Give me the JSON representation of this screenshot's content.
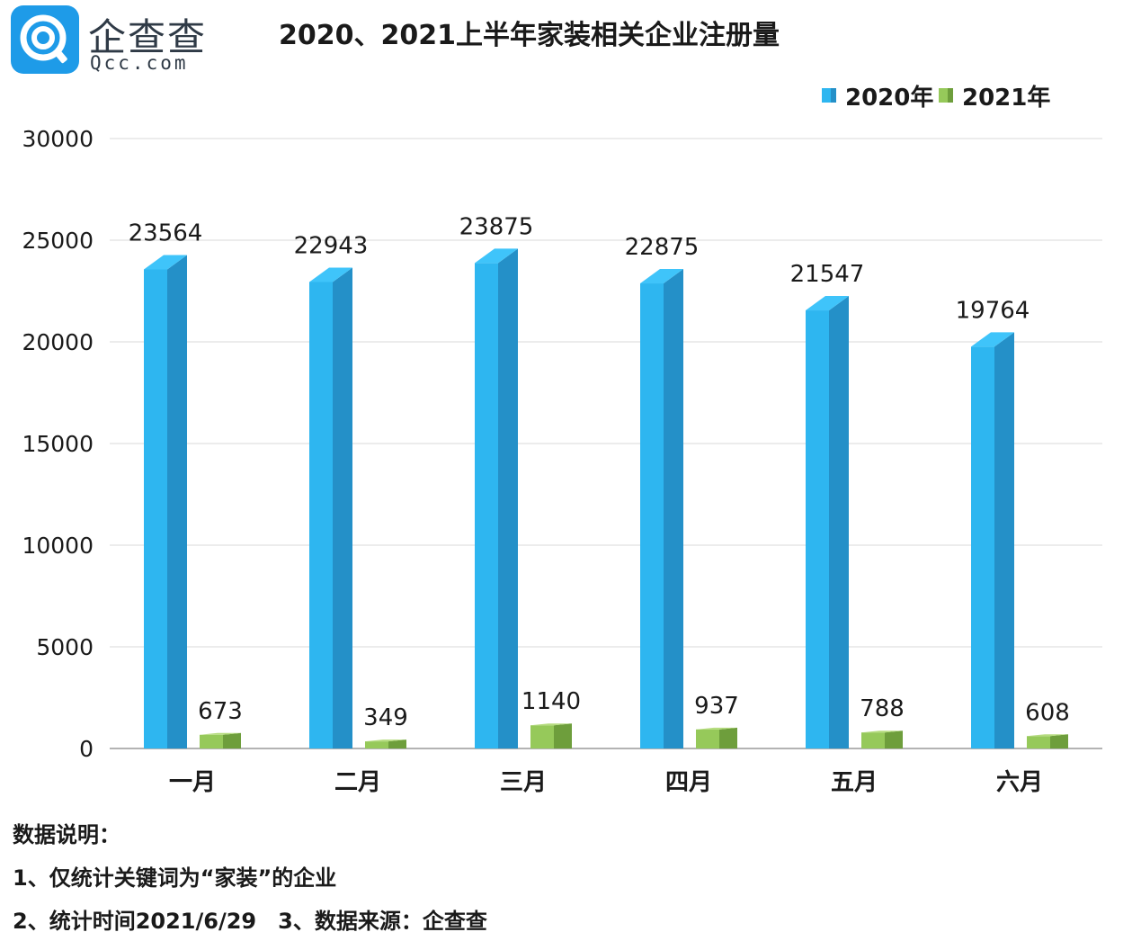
{
  "logo": {
    "brand_cn": "企查查",
    "brand_en": "Qcc.com"
  },
  "title": "2020、2021上半年家装相关企业注册量",
  "chart_data": {
    "type": "bar",
    "title": "2020、2021上半年家装相关企业注册量",
    "categories": [
      "一月",
      "二月",
      "三月",
      "四月",
      "五月",
      "六月"
    ],
    "series": [
      {
        "name": "2020年",
        "values": [
          23564,
          22943,
          23875,
          22875,
          21547,
          19764
        ],
        "color": "#2eb6f0",
        "side_color": "#2490c8",
        "top_color": "#3fc4fa"
      },
      {
        "name": "2021年",
        "values": [
          673,
          349,
          1140,
          937,
          788,
          608
        ],
        "color": "#96c95a",
        "side_color": "#6e9e3c",
        "top_color": "#b5dc7e"
      }
    ],
    "ylim": [
      0,
      30000
    ],
    "yticks": [
      "0",
      "5000",
      "10000",
      "15000",
      "20000",
      "25000",
      "30000"
    ],
    "xlabel": "",
    "ylabel": "",
    "legend": "top-right",
    "grid": true
  },
  "notes": {
    "heading": "数据说明：",
    "line1": "1、仅统计关键词为“家装”的企业",
    "line2": "2、统计时间2021/6/29　3、数据来源：企查查"
  }
}
